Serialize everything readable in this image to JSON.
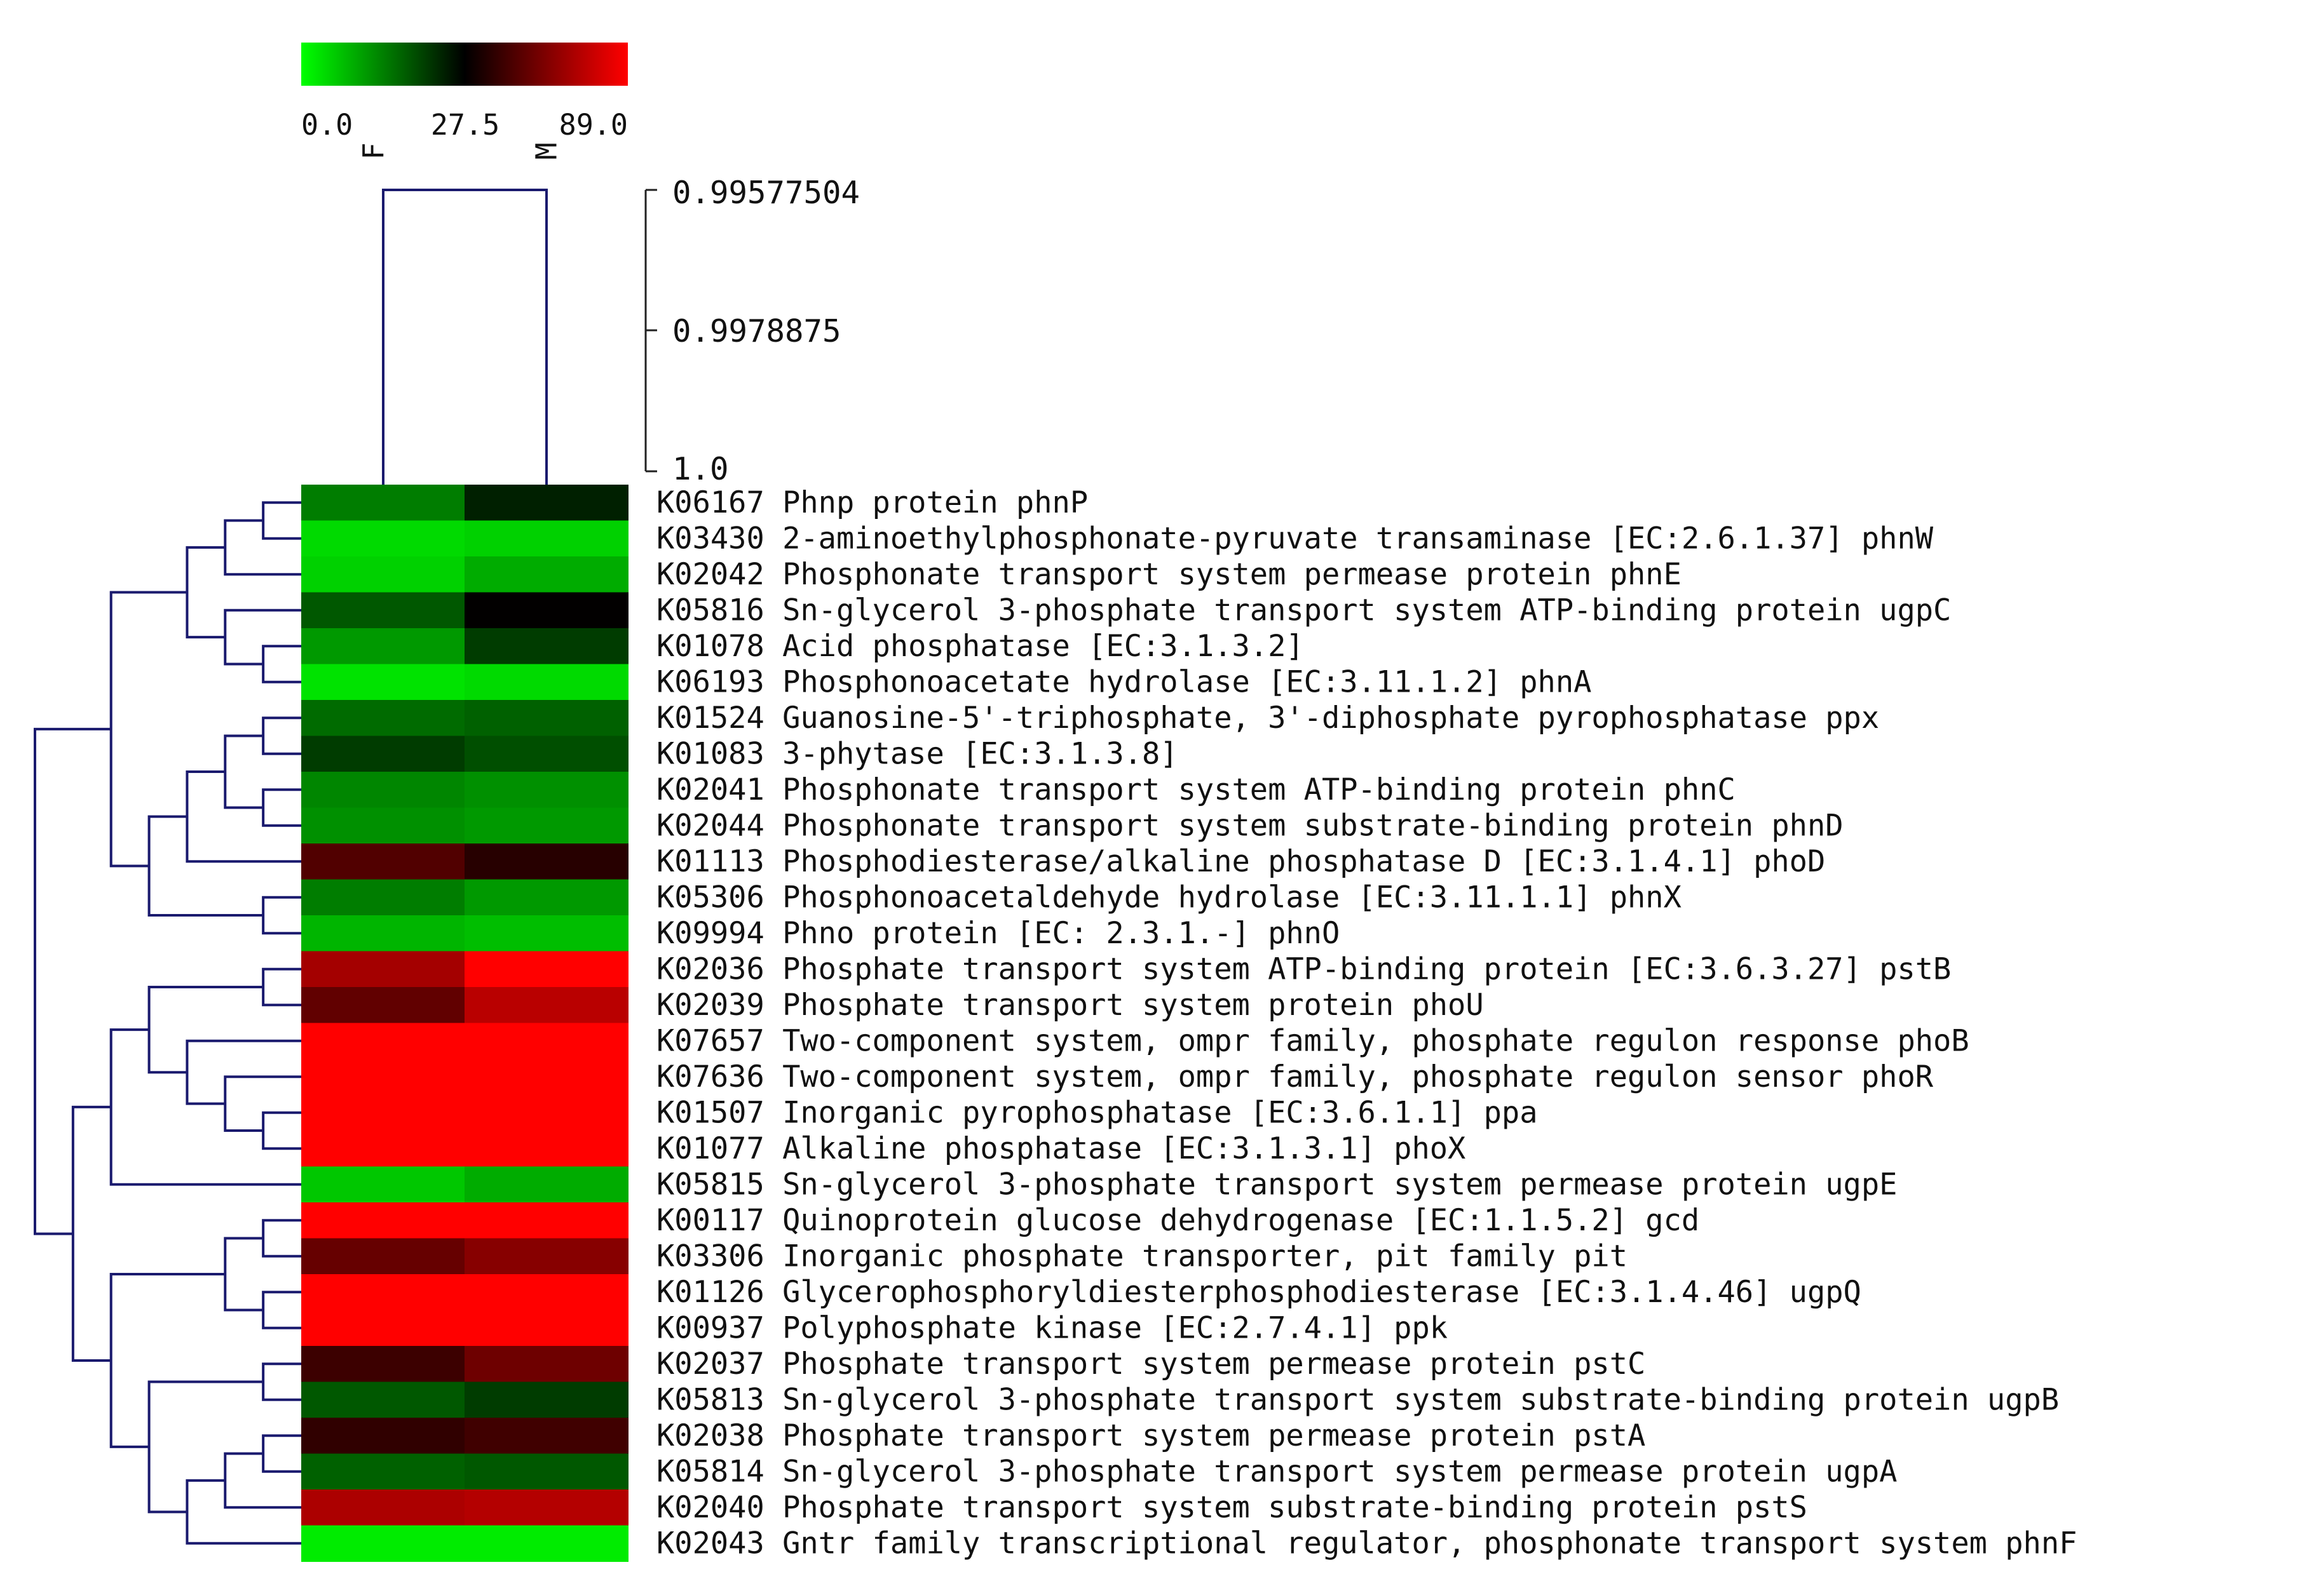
{
  "chart_data": {
    "type": "heatmap",
    "columns": [
      "F",
      "M"
    ],
    "color_scale": {
      "min": 0.0,
      "mid": 27.5,
      "max": 89.0,
      "tick_labels": [
        "0.0",
        "27.5",
        "89.0"
      ],
      "colors": {
        "low": "#00ff00",
        "mid": "#000000",
        "high": "#ff0000"
      }
    },
    "dendrogram_color": "#1a1a6e",
    "column_dendrogram": {
      "height_ticks": [
        "0.99577504",
        "0.9978875",
        "1.0"
      ],
      "join_height": 0.99577504
    },
    "rows": [
      {
        "id": "K06167",
        "name": "Phnp protein phnP",
        "values": [
          14,
          24
        ]
      },
      {
        "id": "K03430",
        "name": "2-aminoethylphosphonate-pyruvate transaminase [EC:2.6.1.37] phnW",
        "values": [
          4,
          5
        ]
      },
      {
        "id": "K02042",
        "name": "Phosphonate transport system permease protein phnE",
        "values": [
          5,
          9
        ]
      },
      {
        "id": "K05816",
        "name": "Sn-glycerol 3-phosphate transport system ATP-binding protein ugpC",
        "values": [
          18,
          28
        ]
      },
      {
        "id": "K01078",
        "name": "Acid phosphatase [EC:3.1.3.2]",
        "values": [
          11,
          21
        ]
      },
      {
        "id": "K06193",
        "name": "Phosphonoacetate hydrolase [EC:3.11.1.2] phnA",
        "values": [
          3,
          4
        ]
      },
      {
        "id": "K01524",
        "name": "Guanosine-5'-triphosphate, 3'-diphosphate pyrophosphatase ppx",
        "values": [
          16,
          17
        ]
      },
      {
        "id": "K01083",
        "name": "3-phytase [EC:3.1.3.8]",
        "values": [
          21,
          19
        ]
      },
      {
        "id": "K02041",
        "name": "Phosphonate transport system ATP-binding protein phnC",
        "values": [
          13,
          12
        ]
      },
      {
        "id": "K02044",
        "name": "Phosphonate transport system substrate-binding protein phnD",
        "values": [
          12,
          11
        ]
      },
      {
        "id": "K01113",
        "name": "Phosphodiesterase/alkaline phosphatase D [EC:3.1.4.1] phoD",
        "values": [
          47,
          37
        ]
      },
      {
        "id": "K05306",
        "name": "Phosphonoacetaldehyde hydrolase [EC:3.11.1.1] phnX",
        "values": [
          14,
          11
        ]
      },
      {
        "id": "K09994",
        "name": "Phno protein [EC: 2.3.1.-] phnO",
        "values": [
          8,
          7
        ]
      },
      {
        "id": "K02036",
        "name": "Phosphate transport system ATP-binding protein [EC:3.6.3.27] pstB",
        "values": [
          67,
          89
        ]
      },
      {
        "id": "K02039",
        "name": "Phosphate transport system protein phoU",
        "values": [
          51,
          72
        ]
      },
      {
        "id": "K07657",
        "name": "Two-component system, ompr family, phosphate regulon response phoB",
        "values": [
          89,
          89
        ]
      },
      {
        "id": "K07636",
        "name": "Two-component system, ompr family, phosphate regulon sensor phoR",
        "values": [
          89,
          89
        ]
      },
      {
        "id": "K01507",
        "name": "Inorganic pyrophosphatase [EC:3.6.1.1] ppa",
        "values": [
          89,
          89
        ]
      },
      {
        "id": "K01077",
        "name": "Alkaline phosphatase [EC:3.1.3.1] phoX",
        "values": [
          89,
          89
        ]
      },
      {
        "id": "K05815",
        "name": "Sn-glycerol 3-phosphate transport system permease protein ugpE",
        "values": [
          6,
          9
        ]
      },
      {
        "id": "K00117",
        "name": "Quinoprotein glucose dehydrogenase [EC:1.1.5.2] gcd",
        "values": [
          89,
          89
        ]
      },
      {
        "id": "K03306",
        "name": "Inorganic phosphate transporter, pit family pit",
        "values": [
          52,
          60
        ]
      },
      {
        "id": "K01126",
        "name": "Glycerophosphoryldiesterphosphodiesterase [EC:3.1.4.46] ugpQ",
        "values": [
          89,
          89
        ]
      },
      {
        "id": "K00937",
        "name": "Polyphosphate kinase [EC:2.7.4.1] ppk",
        "values": [
          89,
          89
        ]
      },
      {
        "id": "K02037",
        "name": "Phosphate transport system permease protein pstC",
        "values": [
          42,
          54
        ]
      },
      {
        "id": "K05813",
        "name": "Sn-glycerol 3-phosphate transport system substrate-binding protein ugpB",
        "values": [
          18,
          21
        ]
      },
      {
        "id": "K02038",
        "name": "Phosphate transport system permease protein pstA",
        "values": [
          39,
          43
        ]
      },
      {
        "id": "K05814",
        "name": "Sn-glycerol 3-phosphate transport system permease protein ugpA",
        "values": [
          17,
          18
        ]
      },
      {
        "id": "K02040",
        "name": "Phosphate transport system substrate-binding protein pstS",
        "values": [
          69,
          71
        ]
      },
      {
        "id": "K02043",
        "name": "Gntr family transcriptional regulator, phosphonate transport system phnF",
        "values": [
          2,
          2
        ]
      }
    ],
    "row_dendrogram": [
      [
        0,
        1
      ],
      [
        2,
        30
      ],
      [
        4,
        5
      ],
      [
        3,
        32
      ],
      [
        31,
        33
      ],
      [
        8,
        9
      ],
      [
        6,
        7
      ],
      [
        35,
        36
      ],
      [
        11,
        12
      ],
      [
        37,
        10
      ],
      [
        39,
        38
      ],
      [
        34,
        40
      ],
      [
        13,
        14
      ],
      [
        17,
        18
      ],
      [
        16,
        43
      ],
      [
        15,
        44
      ],
      [
        42,
        45
      ],
      [
        46,
        19
      ],
      [
        22,
        23
      ],
      [
        20,
        21
      ],
      [
        49,
        48
      ],
      [
        24,
        25
      ],
      [
        26,
        27
      ],
      [
        52,
        28
      ],
      [
        53,
        29
      ],
      [
        51,
        54
      ],
      [
        50,
        55
      ],
      [
        47,
        56
      ],
      [
        41,
        57
      ]
    ]
  }
}
